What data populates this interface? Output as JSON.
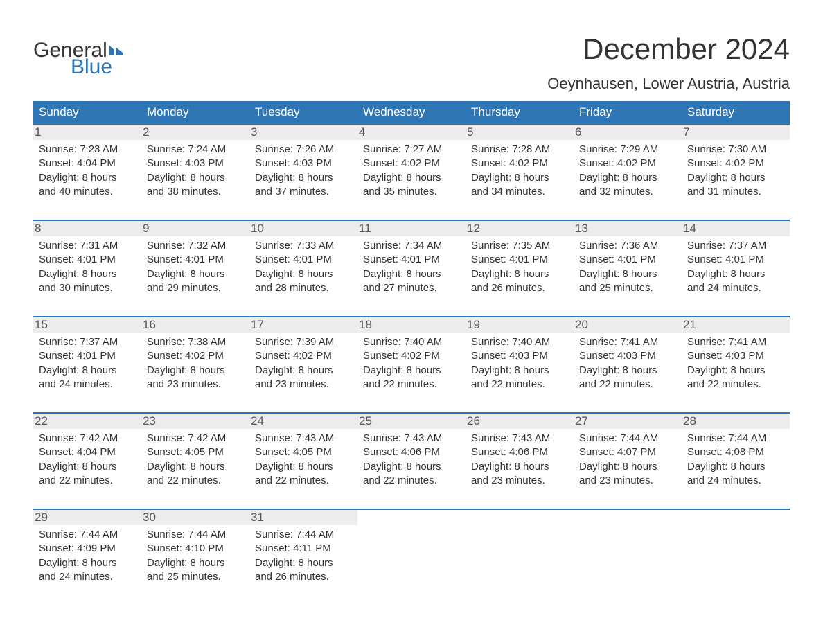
{
  "colors": {
    "header_bg": "#2e75b6",
    "header_text": "#ffffff",
    "day_num_bg": "#ececec",
    "day_num_text": "#555555",
    "body_text": "#333333",
    "week_border": "#2e75b6",
    "logo_blue": "#2e75b6",
    "page_bg": "#ffffff"
  },
  "typography": {
    "title_fontsize": 42,
    "location_fontsize": 22,
    "dow_fontsize": 17,
    "daynum_fontsize": 17,
    "body_fontsize": 15,
    "logo_fontsize": 30
  },
  "logo": {
    "word1": "General",
    "word2": "Blue"
  },
  "title": "December 2024",
  "location": "Oeynhausen, Lower Austria, Austria",
  "days_of_week": [
    "Sunday",
    "Monday",
    "Tuesday",
    "Wednesday",
    "Thursday",
    "Friday",
    "Saturday"
  ],
  "weeks": [
    [
      {
        "n": "1",
        "sunrise": "Sunrise: 7:23 AM",
        "sunset": "Sunset: 4:04 PM",
        "dl1": "Daylight: 8 hours",
        "dl2": "and 40 minutes."
      },
      {
        "n": "2",
        "sunrise": "Sunrise: 7:24 AM",
        "sunset": "Sunset: 4:03 PM",
        "dl1": "Daylight: 8 hours",
        "dl2": "and 38 minutes."
      },
      {
        "n": "3",
        "sunrise": "Sunrise: 7:26 AM",
        "sunset": "Sunset: 4:03 PM",
        "dl1": "Daylight: 8 hours",
        "dl2": "and 37 minutes."
      },
      {
        "n": "4",
        "sunrise": "Sunrise: 7:27 AM",
        "sunset": "Sunset: 4:02 PM",
        "dl1": "Daylight: 8 hours",
        "dl2": "and 35 minutes."
      },
      {
        "n": "5",
        "sunrise": "Sunrise: 7:28 AM",
        "sunset": "Sunset: 4:02 PM",
        "dl1": "Daylight: 8 hours",
        "dl2": "and 34 minutes."
      },
      {
        "n": "6",
        "sunrise": "Sunrise: 7:29 AM",
        "sunset": "Sunset: 4:02 PM",
        "dl1": "Daylight: 8 hours",
        "dl2": "and 32 minutes."
      },
      {
        "n": "7",
        "sunrise": "Sunrise: 7:30 AM",
        "sunset": "Sunset: 4:02 PM",
        "dl1": "Daylight: 8 hours",
        "dl2": "and 31 minutes."
      }
    ],
    [
      {
        "n": "8",
        "sunrise": "Sunrise: 7:31 AM",
        "sunset": "Sunset: 4:01 PM",
        "dl1": "Daylight: 8 hours",
        "dl2": "and 30 minutes."
      },
      {
        "n": "9",
        "sunrise": "Sunrise: 7:32 AM",
        "sunset": "Sunset: 4:01 PM",
        "dl1": "Daylight: 8 hours",
        "dl2": "and 29 minutes."
      },
      {
        "n": "10",
        "sunrise": "Sunrise: 7:33 AM",
        "sunset": "Sunset: 4:01 PM",
        "dl1": "Daylight: 8 hours",
        "dl2": "and 28 minutes."
      },
      {
        "n": "11",
        "sunrise": "Sunrise: 7:34 AM",
        "sunset": "Sunset: 4:01 PM",
        "dl1": "Daylight: 8 hours",
        "dl2": "and 27 minutes."
      },
      {
        "n": "12",
        "sunrise": "Sunrise: 7:35 AM",
        "sunset": "Sunset: 4:01 PM",
        "dl1": "Daylight: 8 hours",
        "dl2": "and 26 minutes."
      },
      {
        "n": "13",
        "sunrise": "Sunrise: 7:36 AM",
        "sunset": "Sunset: 4:01 PM",
        "dl1": "Daylight: 8 hours",
        "dl2": "and 25 minutes."
      },
      {
        "n": "14",
        "sunrise": "Sunrise: 7:37 AM",
        "sunset": "Sunset: 4:01 PM",
        "dl1": "Daylight: 8 hours",
        "dl2": "and 24 minutes."
      }
    ],
    [
      {
        "n": "15",
        "sunrise": "Sunrise: 7:37 AM",
        "sunset": "Sunset: 4:01 PM",
        "dl1": "Daylight: 8 hours",
        "dl2": "and 24 minutes."
      },
      {
        "n": "16",
        "sunrise": "Sunrise: 7:38 AM",
        "sunset": "Sunset: 4:02 PM",
        "dl1": "Daylight: 8 hours",
        "dl2": "and 23 minutes."
      },
      {
        "n": "17",
        "sunrise": "Sunrise: 7:39 AM",
        "sunset": "Sunset: 4:02 PM",
        "dl1": "Daylight: 8 hours",
        "dl2": "and 23 minutes."
      },
      {
        "n": "18",
        "sunrise": "Sunrise: 7:40 AM",
        "sunset": "Sunset: 4:02 PM",
        "dl1": "Daylight: 8 hours",
        "dl2": "and 22 minutes."
      },
      {
        "n": "19",
        "sunrise": "Sunrise: 7:40 AM",
        "sunset": "Sunset: 4:03 PM",
        "dl1": "Daylight: 8 hours",
        "dl2": "and 22 minutes."
      },
      {
        "n": "20",
        "sunrise": "Sunrise: 7:41 AM",
        "sunset": "Sunset: 4:03 PM",
        "dl1": "Daylight: 8 hours",
        "dl2": "and 22 minutes."
      },
      {
        "n": "21",
        "sunrise": "Sunrise: 7:41 AM",
        "sunset": "Sunset: 4:03 PM",
        "dl1": "Daylight: 8 hours",
        "dl2": "and 22 minutes."
      }
    ],
    [
      {
        "n": "22",
        "sunrise": "Sunrise: 7:42 AM",
        "sunset": "Sunset: 4:04 PM",
        "dl1": "Daylight: 8 hours",
        "dl2": "and 22 minutes."
      },
      {
        "n": "23",
        "sunrise": "Sunrise: 7:42 AM",
        "sunset": "Sunset: 4:05 PM",
        "dl1": "Daylight: 8 hours",
        "dl2": "and 22 minutes."
      },
      {
        "n": "24",
        "sunrise": "Sunrise: 7:43 AM",
        "sunset": "Sunset: 4:05 PM",
        "dl1": "Daylight: 8 hours",
        "dl2": "and 22 minutes."
      },
      {
        "n": "25",
        "sunrise": "Sunrise: 7:43 AM",
        "sunset": "Sunset: 4:06 PM",
        "dl1": "Daylight: 8 hours",
        "dl2": "and 22 minutes."
      },
      {
        "n": "26",
        "sunrise": "Sunrise: 7:43 AM",
        "sunset": "Sunset: 4:06 PM",
        "dl1": "Daylight: 8 hours",
        "dl2": "and 23 minutes."
      },
      {
        "n": "27",
        "sunrise": "Sunrise: 7:44 AM",
        "sunset": "Sunset: 4:07 PM",
        "dl1": "Daylight: 8 hours",
        "dl2": "and 23 minutes."
      },
      {
        "n": "28",
        "sunrise": "Sunrise: 7:44 AM",
        "sunset": "Sunset: 4:08 PM",
        "dl1": "Daylight: 8 hours",
        "dl2": "and 24 minutes."
      }
    ],
    [
      {
        "n": "29",
        "sunrise": "Sunrise: 7:44 AM",
        "sunset": "Sunset: 4:09 PM",
        "dl1": "Daylight: 8 hours",
        "dl2": "and 24 minutes."
      },
      {
        "n": "30",
        "sunrise": "Sunrise: 7:44 AM",
        "sunset": "Sunset: 4:10 PM",
        "dl1": "Daylight: 8 hours",
        "dl2": "and 25 minutes."
      },
      {
        "n": "31",
        "sunrise": "Sunrise: 7:44 AM",
        "sunset": "Sunset: 4:11 PM",
        "dl1": "Daylight: 8 hours",
        "dl2": "and 26 minutes."
      },
      null,
      null,
      null,
      null
    ]
  ]
}
